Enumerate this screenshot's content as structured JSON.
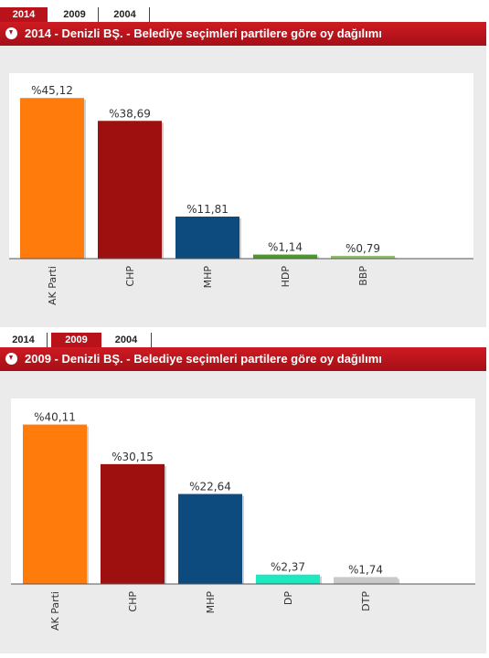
{
  "tabs": [
    "2014",
    "2009",
    "2004"
  ],
  "panels": [
    {
      "active_tab": 0,
      "header": "2014 - Denizli BŞ. - Belediye seçimleri partilere göre oy dağılımı"
    },
    {
      "active_tab": 1,
      "header": "2009 - Denizli BŞ. - Belediye seçimleri partilere göre oy dağılımı"
    }
  ],
  "chart_data": [
    {
      "type": "bar",
      "title": "2014 - Denizli BŞ. - Belediye seçimleri partilere göre oy dağılımı",
      "categories": [
        "AK Parti",
        "CHP",
        "MHP",
        "HDP",
        "BBP"
      ],
      "values": [
        45.12,
        38.69,
        11.81,
        1.14,
        0.79
      ],
      "labels": [
        "%45,12",
        "%38,69",
        "%11,81",
        "%1,14",
        "%0,79"
      ],
      "colors": [
        "#ff7b0b",
        "#9e0f0f",
        "#0d4a7e",
        "#4a9a28",
        "#8fbf6a"
      ],
      "ylim": [
        0,
        48
      ]
    },
    {
      "type": "bar",
      "title": "2009 - Denizli BŞ. - Belediye seçimleri partilere göre oy dağılımı",
      "categories": [
        "AK Parti",
        "CHP",
        "MHP",
        "DP",
        "DTP"
      ],
      "values": [
        40.11,
        30.15,
        22.64,
        2.37,
        1.74
      ],
      "labels": [
        "%40,11",
        "%30,15",
        "%22,64",
        "%2,37",
        "%1,74"
      ],
      "colors": [
        "#ff7b0b",
        "#9e0f0f",
        "#0d4a7e",
        "#1de9c0",
        "#c9c9c9"
      ],
      "ylim": [
        0,
        43
      ]
    }
  ]
}
